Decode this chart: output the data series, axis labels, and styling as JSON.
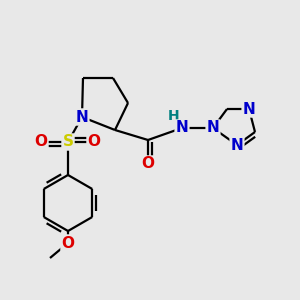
{
  "bg_color": "#e8e8e8",
  "bond_color": "#000000",
  "bond_width": 1.6,
  "atom_colors": {
    "N": "#0000cc",
    "O": "#dd0000",
    "S": "#cccc00",
    "H": "#008080",
    "C": "#000000"
  },
  "font_size": 11,
  "fig_size": [
    3.0,
    3.0
  ],
  "dpi": 100
}
